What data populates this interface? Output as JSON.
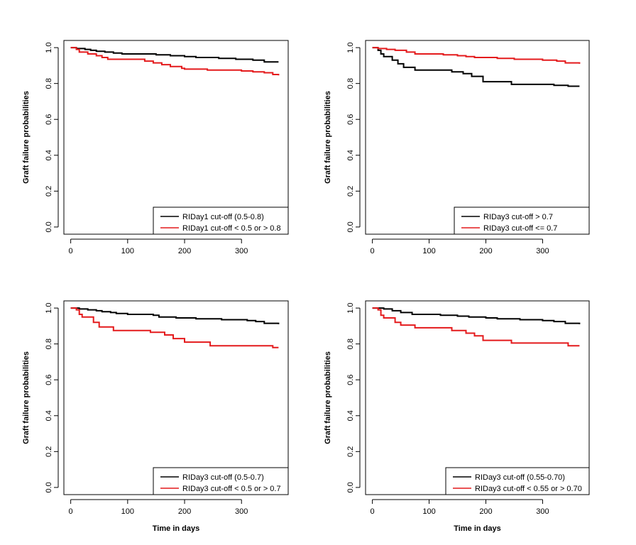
{
  "colors": {
    "black_series": "#000000",
    "red_series": "#e41a1c",
    "axes": "#000000"
  },
  "chart_data": [
    {
      "type": "line",
      "title": "",
      "xlabel": "",
      "ylabel": "Graft failure probabilities",
      "xlim": [
        0,
        365
      ],
      "ylim": [
        0,
        1
      ],
      "x_ticks": [
        "0",
        "100",
        "200",
        "300"
      ],
      "y_ticks": [
        "0.0",
        "0.2",
        "0.4",
        "0.6",
        "0.8",
        "1.0"
      ],
      "legend_position": "bottom-right",
      "series": [
        {
          "name": "RIDay1 cut-off (0.5-0.8)",
          "color": "#000000",
          "points": [
            [
              0,
              1.0
            ],
            [
              10,
              0.995
            ],
            [
              25,
              0.99
            ],
            [
              35,
              0.985
            ],
            [
              45,
              0.98
            ],
            [
              60,
              0.975
            ],
            [
              75,
              0.97
            ],
            [
              90,
              0.965
            ],
            [
              150,
              0.96
            ],
            [
              175,
              0.955
            ],
            [
              200,
              0.95
            ],
            [
              220,
              0.945
            ],
            [
              260,
              0.94
            ],
            [
              290,
              0.935
            ],
            [
              320,
              0.93
            ],
            [
              340,
              0.92
            ],
            [
              365,
              0.92
            ]
          ]
        },
        {
          "name": "RIDay1 cut-off < 0.5 or > 0.8",
          "color": "#e41a1c",
          "points": [
            [
              0,
              1.0
            ],
            [
              10,
              0.99
            ],
            [
              15,
              0.975
            ],
            [
              30,
              0.965
            ],
            [
              45,
              0.955
            ],
            [
              55,
              0.945
            ],
            [
              65,
              0.935
            ],
            [
              130,
              0.925
            ],
            [
              145,
              0.915
            ],
            [
              160,
              0.905
            ],
            [
              175,
              0.895
            ],
            [
              195,
              0.885
            ],
            [
              200,
              0.88
            ],
            [
              240,
              0.875
            ],
            [
              300,
              0.87
            ],
            [
              320,
              0.865
            ],
            [
              340,
              0.86
            ],
            [
              355,
              0.85
            ],
            [
              365,
              0.845
            ]
          ]
        }
      ]
    },
    {
      "type": "line",
      "title": "",
      "xlabel": "",
      "ylabel": "Graft failure probabilities",
      "xlim": [
        0,
        365
      ],
      "ylim": [
        0,
        1
      ],
      "x_ticks": [
        "0",
        "100",
        "200",
        "300"
      ],
      "y_ticks": [
        "0.0",
        "0.2",
        "0.4",
        "0.6",
        "0.8",
        "1.0"
      ],
      "legend_position": "bottom-right",
      "series": [
        {
          "name": "RIDay3 cut-off > 0.7",
          "color": "#000000",
          "points": [
            [
              0,
              1.0
            ],
            [
              10,
              0.985
            ],
            [
              15,
              0.965
            ],
            [
              20,
              0.95
            ],
            [
              35,
              0.93
            ],
            [
              45,
              0.91
            ],
            [
              55,
              0.89
            ],
            [
              75,
              0.875
            ],
            [
              140,
              0.865
            ],
            [
              160,
              0.855
            ],
            [
              175,
              0.84
            ],
            [
              195,
              0.81
            ],
            [
              245,
              0.795
            ],
            [
              320,
              0.79
            ],
            [
              345,
              0.785
            ],
            [
              365,
              0.785
            ]
          ]
        },
        {
          "name": "RIDay3 cut-off <= 0.7",
          "color": "#e41a1c",
          "points": [
            [
              0,
              1.0
            ],
            [
              10,
              0.995
            ],
            [
              25,
              0.99
            ],
            [
              40,
              0.985
            ],
            [
              60,
              0.975
            ],
            [
              75,
              0.965
            ],
            [
              125,
              0.96
            ],
            [
              150,
              0.955
            ],
            [
              165,
              0.95
            ],
            [
              180,
              0.945
            ],
            [
              220,
              0.94
            ],
            [
              250,
              0.935
            ],
            [
              300,
              0.93
            ],
            [
              325,
              0.925
            ],
            [
              340,
              0.915
            ],
            [
              365,
              0.91
            ]
          ]
        }
      ]
    },
    {
      "type": "line",
      "title": "",
      "xlabel": "Time in days",
      "ylabel": "Graft failure probabilities",
      "xlim": [
        0,
        365
      ],
      "ylim": [
        0,
        1
      ],
      "x_ticks": [
        "0",
        "100",
        "200",
        "300"
      ],
      "y_ticks": [
        "0.0",
        "0.2",
        "0.4",
        "0.6",
        "0.8",
        "1.0"
      ],
      "legend_position": "bottom-right",
      "series": [
        {
          "name": "RIDay3 cut-off (0.5-0.7)",
          "color": "#000000",
          "points": [
            [
              0,
              1.0
            ],
            [
              15,
              0.995
            ],
            [
              30,
              0.99
            ],
            [
              45,
              0.985
            ],
            [
              55,
              0.98
            ],
            [
              70,
              0.975
            ],
            [
              80,
              0.97
            ],
            [
              100,
              0.965
            ],
            [
              145,
              0.96
            ],
            [
              155,
              0.95
            ],
            [
              185,
              0.945
            ],
            [
              220,
              0.94
            ],
            [
              265,
              0.935
            ],
            [
              310,
              0.93
            ],
            [
              325,
              0.925
            ],
            [
              340,
              0.915
            ],
            [
              365,
              0.91
            ]
          ]
        },
        {
          "name": "RIDay3 cut-off < 0.5 or > 0.7",
          "color": "#e41a1c",
          "points": [
            [
              0,
              1.0
            ],
            [
              10,
              0.99
            ],
            [
              15,
              0.965
            ],
            [
              20,
              0.95
            ],
            [
              40,
              0.92
            ],
            [
              50,
              0.895
            ],
            [
              75,
              0.875
            ],
            [
              140,
              0.865
            ],
            [
              165,
              0.85
            ],
            [
              180,
              0.83
            ],
            [
              200,
              0.81
            ],
            [
              245,
              0.79
            ],
            [
              355,
              0.78
            ],
            [
              365,
              0.78
            ]
          ]
        }
      ]
    },
    {
      "type": "line",
      "title": "",
      "xlabel": "Time in days",
      "ylabel": "Graft failure probabilities",
      "xlim": [
        0,
        365
      ],
      "ylim": [
        0,
        1
      ],
      "x_ticks": [
        "0",
        "100",
        "200",
        "300"
      ],
      "y_ticks": [
        "0.0",
        "0.2",
        "0.4",
        "0.6",
        "0.8",
        "1.0"
      ],
      "legend_position": "bottom-right",
      "series": [
        {
          "name": "RIDay3 cut-off (0.55-0.70)",
          "color": "#000000",
          "points": [
            [
              0,
              1.0
            ],
            [
              20,
              0.995
            ],
            [
              35,
              0.985
            ],
            [
              50,
              0.975
            ],
            [
              70,
              0.965
            ],
            [
              120,
              0.96
            ],
            [
              150,
              0.955
            ],
            [
              170,
              0.95
            ],
            [
              200,
              0.945
            ],
            [
              220,
              0.94
            ],
            [
              260,
              0.935
            ],
            [
              300,
              0.93
            ],
            [
              320,
              0.925
            ],
            [
              340,
              0.915
            ],
            [
              365,
              0.91
            ]
          ]
        },
        {
          "name": "RIDay3 cut-off < 0.55 or > 0.70",
          "color": "#e41a1c",
          "points": [
            [
              0,
              1.0
            ],
            [
              10,
              0.99
            ],
            [
              15,
              0.96
            ],
            [
              20,
              0.945
            ],
            [
              40,
              0.92
            ],
            [
              50,
              0.905
            ],
            [
              75,
              0.89
            ],
            [
              140,
              0.875
            ],
            [
              165,
              0.86
            ],
            [
              180,
              0.845
            ],
            [
              195,
              0.82
            ],
            [
              245,
              0.805
            ],
            [
              345,
              0.79
            ],
            [
              365,
              0.79
            ]
          ]
        }
      ]
    }
  ]
}
